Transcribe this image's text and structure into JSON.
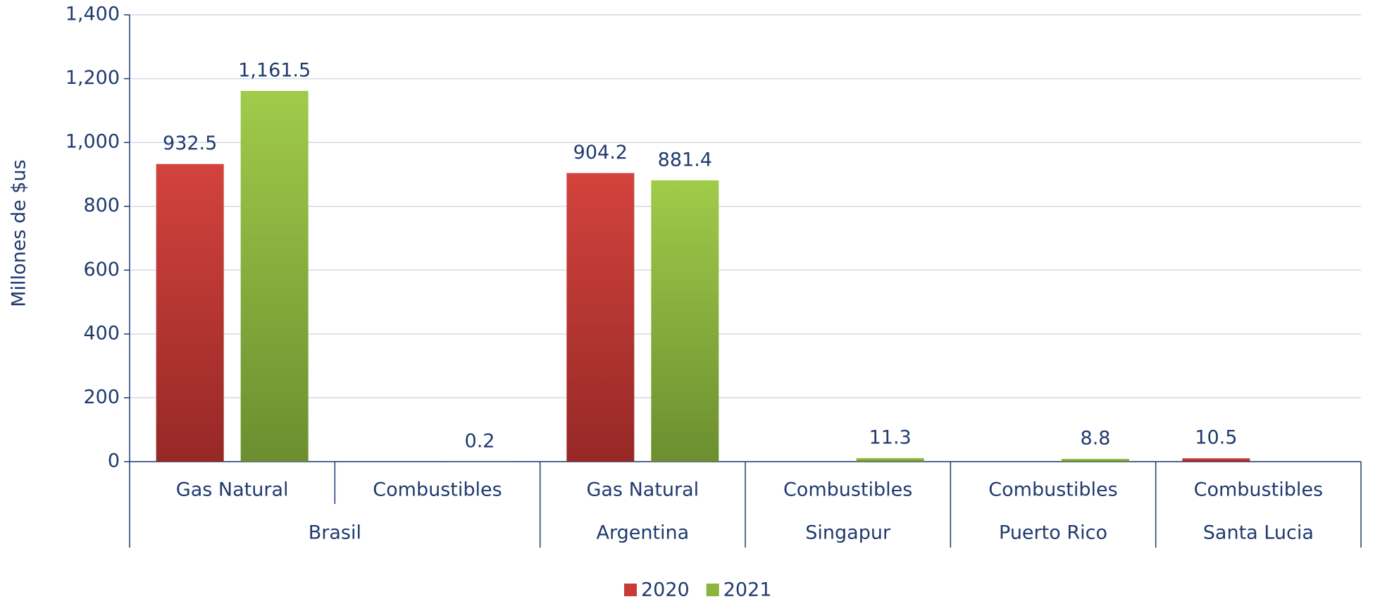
{
  "chart_data": {
    "type": "bar",
    "y_label": "Millones de $us",
    "categories": [
      "Gas Natural",
      "Combustibles",
      "Gas Natural",
      "Combustibles",
      "Combustibles",
      "Combustibles"
    ],
    "groups": [
      "Brasil",
      "Brasil",
      "Argentina",
      "Singapur",
      "Puerto Rico",
      "Santa Lucia"
    ],
    "series": [
      {
        "name": "2020",
        "color": "#c93a36",
        "values": [
          932.5,
          null,
          904.2,
          null,
          null,
          10.5
        ],
        "value_labels": [
          "932.5",
          null,
          "904.2",
          null,
          null,
          "10.5"
        ]
      },
      {
        "name": "2021",
        "color": "#8cb43e",
        "values": [
          1161.5,
          0.2,
          881.4,
          11.3,
          8.8,
          null
        ],
        "value_labels": [
          "1,161.5",
          "0.2",
          "881.4",
          "11.3",
          "8.8",
          null
        ]
      }
    ],
    "ylim": [
      0,
      1400
    ],
    "yticks": [
      0,
      200,
      400,
      600,
      800,
      {
        "value": 1000,
        "label": "1,000"
      },
      {
        "value": 1200,
        "label": "1,200"
      },
      {
        "value": 1400,
        "label": "1,400"
      }
    ],
    "grid": true,
    "legend": "bottom"
  }
}
